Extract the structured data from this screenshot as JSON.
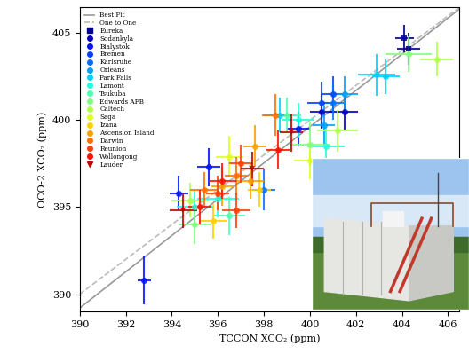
{
  "chart_data": {
    "type": "scatter",
    "x_label": "TCCON XCO₂ (ppm)",
    "y_label": "OCO-2 XCO₂ (ppm)",
    "xlim": [
      390,
      406.5
    ],
    "xticks": [
      390,
      392,
      394,
      396,
      398,
      400,
      402,
      404,
      406
    ],
    "ylim": [
      389,
      406.5
    ],
    "yticks": [
      390,
      395,
      400,
      405
    ],
    "legend": "upper left",
    "lines": [
      {
        "name": "Best Fit",
        "color": "#999999",
        "line_style": "solid",
        "x": [
          390,
          406.5
        ],
        "values": [
          389.2,
          406.4
        ]
      },
      {
        "name": "One to One",
        "color": "#bbbbbb",
        "line_style": "dashed",
        "x": [
          390,
          406.5
        ],
        "values": [
          390,
          406.5
        ]
      }
    ],
    "series": [
      {
        "name": "Eureka",
        "color": "#00008f",
        "marker": "square",
        "x": [
          404.1,
          404.3
        ],
        "values": [
          404.7,
          404.1
        ],
        "xerr": [
          0.4,
          0.5
        ],
        "yerr": [
          0.8,
          0.9
        ]
      },
      {
        "name": "Sodankyla",
        "color": "#0000c0",
        "marker": "circle",
        "x": [
          400.5,
          401.5
        ],
        "values": [
          400.5,
          400.5
        ],
        "xerr": [
          0.5,
          0.6
        ],
        "yerr": [
          1.0,
          1.1
        ]
      },
      {
        "name": "Bialystok",
        "color": "#0010ff",
        "marker": "circle",
        "x": [
          392.8,
          394.3,
          395.6,
          399.5
        ],
        "values": [
          390.8,
          395.8,
          397.3,
          399.5
        ],
        "xerr": [
          0.3,
          0.4,
          0.5,
          0.5
        ],
        "yerr": [
          1.4,
          1.0,
          1.1,
          1.0
        ]
      },
      {
        "name": "Bremen",
        "color": "#0040ff",
        "marker": "circle",
        "x": [
          400.5,
          401.0
        ],
        "values": [
          401.0,
          401.5
        ],
        "xerr": [
          0.6,
          0.5
        ],
        "yerr": [
          1.2,
          1.0
        ]
      },
      {
        "name": "Karlsruhe",
        "color": "#0070ff",
        "marker": "circle",
        "x": [
          398.0,
          401.0
        ],
        "values": [
          396.0,
          401.0
        ],
        "xerr": [
          0.5,
          0.6
        ],
        "yerr": [
          1.2,
          1.0
        ]
      },
      {
        "name": "Orleans",
        "color": "#00a0ff",
        "marker": "circle",
        "x": [
          401.5,
          400.6
        ],
        "values": [
          401.5,
          399.7
        ],
        "xerr": [
          0.6,
          0.5
        ],
        "yerr": [
          1.0,
          1.1
        ]
      },
      {
        "name": "Park Falls",
        "color": "#00d0ff",
        "marker": "circle",
        "x": [
          398.7,
          402.9,
          403.3
        ],
        "values": [
          400.3,
          402.6,
          402.5
        ],
        "xerr": [
          0.7,
          0.8,
          0.6
        ],
        "yerr": [
          1.0,
          1.2,
          1.0
        ]
      },
      {
        "name": "Lamont",
        "color": "#20ffdf",
        "marker": "circle",
        "x": [
          395.0,
          396.0,
          399.5,
          400.7
        ],
        "values": [
          395.0,
          395.5,
          400.0,
          398.5
        ],
        "xerr": [
          0.8,
          0.9,
          0.7,
          0.8
        ],
        "yerr": [
          1.0,
          1.1,
          1.0,
          1.2
        ]
      },
      {
        "name": "Tsukuba",
        "color": "#50ffaf",
        "marker": "circle",
        "x": [
          399.0,
          396.5
        ],
        "values": [
          400.3,
          394.5
        ],
        "xerr": [
          0.6,
          0.7
        ],
        "yerr": [
          1.0,
          1.1
        ]
      },
      {
        "name": "Edwards AFB",
        "color": "#80ff80",
        "marker": "circle",
        "x": [
          395.0,
          400.0,
          404.3
        ],
        "values": [
          394.0,
          398.6,
          403.8
        ],
        "xerr": [
          0.7,
          0.9,
          1.0
        ],
        "yerr": [
          1.1,
          1.3,
          1.0
        ]
      },
      {
        "name": "Caltech",
        "color": "#afff50",
        "marker": "circle",
        "x": [
          394.8,
          401.2,
          405.5
        ],
        "values": [
          395.4,
          399.4,
          403.5
        ],
        "xerr": [
          0.8,
          0.9,
          0.7
        ],
        "yerr": [
          1.0,
          1.2,
          1.0
        ]
      },
      {
        "name": "Saga",
        "color": "#dfff20",
        "marker": "circle",
        "x": [
          396.5,
          400.0
        ],
        "values": [
          397.9,
          397.7
        ],
        "xerr": [
          0.6,
          0.7
        ],
        "yerr": [
          1.2,
          1.1
        ]
      },
      {
        "name": "Izana",
        "color": "#ffd000",
        "marker": "circle",
        "x": [
          397.8,
          395.8
        ],
        "values": [
          396.0,
          394.2
        ],
        "xerr": [
          0.5,
          0.6
        ],
        "yerr": [
          1.0,
          1.0
        ]
      },
      {
        "name": "Ascension Island",
        "color": "#ffa000",
        "marker": "circle",
        "x": [
          396.2,
          397.6,
          397.4
        ],
        "values": [
          396.2,
          398.5,
          396.5
        ],
        "xerr": [
          0.5,
          0.5,
          0.6
        ],
        "yerr": [
          1.1,
          1.2,
          1.0
        ]
      },
      {
        "name": "Darwin",
        "color": "#ff7000",
        "marker": "circle",
        "x": [
          395.4,
          396.8,
          398.5
        ],
        "values": [
          396.0,
          396.8,
          400.3
        ],
        "xerr": [
          0.6,
          0.5,
          0.6
        ],
        "yerr": [
          1.0,
          1.1,
          1.2
        ]
      },
      {
        "name": "Reunion",
        "color": "#ff4000",
        "marker": "circle",
        "x": [
          396.0,
          397.0,
          396.8
        ],
        "values": [
          395.8,
          397.5,
          394.8
        ],
        "xerr": [
          0.5,
          0.5,
          0.6
        ],
        "yerr": [
          1.0,
          1.1,
          1.0
        ]
      },
      {
        "name": "Wollongong",
        "color": "#ff1000",
        "marker": "circle",
        "x": [
          398.6,
          396.2,
          395.2
        ],
        "values": [
          398.3,
          396.5,
          395.0
        ],
        "xerr": [
          0.5,
          0.6,
          0.5
        ],
        "yerr": [
          1.1,
          1.0,
          1.0
        ]
      },
      {
        "name": "Lauder",
        "color": "#c00000",
        "marker": "triangle_down",
        "x": [
          397.5,
          399.2,
          394.5
        ],
        "values": [
          397.2,
          399.3,
          394.8
        ],
        "xerr": [
          0.5,
          0.5,
          0.6
        ],
        "yerr": [
          1.0,
          1.1,
          1.0
        ]
      }
    ]
  }
}
